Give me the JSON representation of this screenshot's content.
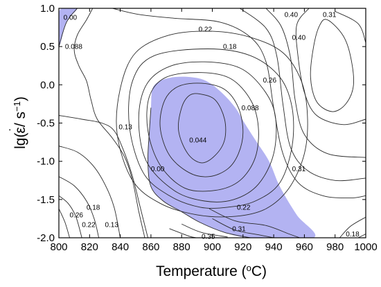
{
  "chart_data": {
    "type": "contour",
    "title": "",
    "xlabel": {
      "main": "Temperature (",
      "sup": "o",
      "tail": "C)"
    },
    "ylabel": {
      "prefix": "lg(",
      "dot": "˙",
      "eps": "ε",
      "mid": "/ s",
      "sup": "−1",
      "tail": ")"
    },
    "xlim": [
      800,
      1000
    ],
    "ylim": [
      -2.0,
      1.0
    ],
    "xticks": [
      800,
      820,
      840,
      860,
      880,
      900,
      920,
      940,
      960,
      980,
      1000
    ],
    "yticks": [
      {
        "value": 1.0,
        "label": "1.0"
      },
      {
        "value": 0.5,
        "label": "0.5"
      },
      {
        "value": 0.0,
        "label": "0.0"
      },
      {
        "value": -0.5,
        "label": "-0.5"
      },
      {
        "value": -1.0,
        "label": "-1.0"
      },
      {
        "value": -1.5,
        "label": "-1.5"
      },
      {
        "value": -2.0,
        "label": "-2.0"
      }
    ],
    "instability_regions": [
      {
        "color": "#b3b3f2",
        "points": [
          [
            800,
            0.5
          ],
          [
            800,
            0.94
          ],
          [
            805,
            1.0
          ],
          [
            812,
            1.0
          ],
          [
            805,
            0.82
          ],
          [
            800,
            0.5
          ]
        ]
      },
      {
        "color": "#b3b3f2",
        "points": [
          [
            860,
            -0.3
          ],
          [
            861,
            -0.05
          ],
          [
            866,
            0.05
          ],
          [
            875,
            0.1
          ],
          [
            886,
            0.1
          ],
          [
            896,
            0.05
          ],
          [
            906,
            -0.1
          ],
          [
            915,
            -0.3
          ],
          [
            921,
            -0.5
          ],
          [
            928,
            -0.72
          ],
          [
            937,
            -1.0
          ],
          [
            944,
            -1.33
          ],
          [
            955,
            -1.7
          ],
          [
            966,
            -2.0
          ],
          [
            925,
            -2.0
          ],
          [
            908,
            -1.93
          ],
          [
            892,
            -1.8
          ],
          [
            880,
            -1.66
          ],
          [
            868,
            -1.52
          ],
          [
            860,
            -1.33
          ],
          [
            858,
            -1.0
          ],
          [
            859,
            -0.6
          ],
          [
            860,
            -0.3
          ]
        ]
      }
    ],
    "contour_lines": [
      {
        "level": "0.044",
        "points": [
          [
            892,
            -0.12
          ],
          [
            902,
            -0.2
          ],
          [
            908,
            -0.45
          ],
          [
            908,
            -0.72
          ],
          [
            902,
            -0.92
          ],
          [
            893,
            -1.02
          ],
          [
            884,
            -0.9
          ],
          [
            878,
            -0.6
          ],
          [
            880,
            -0.3
          ],
          [
            885,
            -0.14
          ],
          [
            892,
            -0.12
          ]
        ]
      },
      {
        "level": "0.088",
        "points": [
          [
            893,
            0.02
          ],
          [
            908,
            -0.06
          ],
          [
            917,
            -0.3
          ],
          [
            920,
            -0.62
          ],
          [
            917,
            -0.9
          ],
          [
            910,
            -1.1
          ],
          [
            898,
            -1.2
          ],
          [
            885,
            -1.15
          ],
          [
            872,
            -0.92
          ],
          [
            866,
            -0.55
          ],
          [
            869,
            -0.2
          ],
          [
            878,
            -0.02
          ],
          [
            893,
            0.02
          ]
        ]
      },
      {
        "level": "0.13",
        "points": [
          [
            893,
            0.16
          ],
          [
            912,
            0.08
          ],
          [
            925,
            -0.2
          ],
          [
            930,
            -0.55
          ],
          [
            928,
            -0.95
          ],
          [
            918,
            -1.25
          ],
          [
            902,
            -1.38
          ],
          [
            882,
            -1.35
          ],
          [
            866,
            -1.05
          ],
          [
            858,
            -0.6
          ],
          [
            859,
            -0.15
          ],
          [
            870,
            0.1
          ],
          [
            893,
            0.16
          ]
        ]
      },
      {
        "level": "0.18",
        "points": [
          [
            895,
            0.3
          ],
          [
            918,
            0.22
          ],
          [
            933,
            -0.05
          ],
          [
            941,
            -0.4
          ],
          [
            940,
            -0.9
          ],
          [
            930,
            -1.3
          ],
          [
            914,
            -1.5
          ],
          [
            895,
            -1.52
          ],
          [
            875,
            -1.38
          ],
          [
            857,
            -1.0
          ],
          [
            852,
            -0.45
          ],
          [
            857,
            0.0
          ],
          [
            872,
            0.24
          ],
          [
            895,
            0.3
          ]
        ]
      },
      {
        "level": "0.22",
        "points": [
          [
            897,
            0.47
          ],
          [
            925,
            0.38
          ],
          [
            944,
            0.1
          ],
          [
            952,
            -0.3
          ],
          [
            952,
            -0.8
          ],
          [
            944,
            -1.28
          ],
          [
            928,
            -1.52
          ],
          [
            910,
            -1.6
          ],
          [
            892,
            -1.6
          ],
          [
            872,
            -1.45
          ],
          [
            855,
            -1.15
          ],
          [
            846,
            -0.55
          ],
          [
            848,
            0.05
          ],
          [
            862,
            0.38
          ],
          [
            897,
            0.47
          ]
        ]
      },
      {
        "level": "0.26",
        "points": [
          [
            925,
            0.62
          ],
          [
            946,
            0.42
          ],
          [
            958,
            0.05
          ],
          [
            962,
            -0.4
          ],
          [
            960,
            -0.9
          ],
          [
            950,
            -1.35
          ],
          [
            935,
            -1.62
          ],
          [
            915,
            -1.72
          ],
          [
            890,
            -1.7
          ],
          [
            866,
            -1.55
          ],
          [
            848,
            -1.25
          ],
          [
            838,
            -0.65
          ],
          [
            840,
            -0.05
          ],
          [
            850,
            0.42
          ],
          [
            872,
            0.65
          ],
          [
            900,
            0.7
          ],
          [
            925,
            0.62
          ]
        ]
      },
      {
        "level": "0.31",
        "points": [
          [
            975,
            0.85
          ],
          [
            985,
            0.65
          ],
          [
            990,
            0.38
          ],
          [
            992,
            0.0
          ],
          [
            987,
            -0.25
          ],
          [
            978,
            -0.35
          ],
          [
            968,
            -0.22
          ],
          [
            964,
            0.1
          ],
          [
            966,
            0.5
          ],
          [
            970,
            0.78
          ],
          [
            975,
            0.85
          ]
        ]
      },
      {
        "level": "0.35",
        "points": [
          [
            980,
            0.96
          ],
          [
            995,
            0.8
          ],
          [
            1000,
            0.55
          ]
        ]
      },
      {
        "level": "0.40",
        "points": [
          [
            963,
            1.0
          ],
          [
            955,
            0.78
          ],
          [
            956,
            0.35
          ],
          [
            960,
            -0.1
          ],
          [
            968,
            -0.4
          ],
          [
            985,
            -0.52
          ],
          [
            1000,
            -0.45
          ]
        ]
      },
      {
        "level": "0.40",
        "points": [
          [
            935,
            1.0
          ],
          [
            945,
            0.76
          ],
          [
            951,
            0.35
          ],
          [
            954,
            -0.2
          ],
          [
            960,
            -0.65
          ],
          [
            975,
            -0.9
          ],
          [
            1000,
            -0.95
          ]
        ]
      },
      {
        "level": "0.31",
        "points": [
          [
            918,
            1.0
          ],
          [
            935,
            0.74
          ],
          [
            942,
            0.38
          ],
          [
            946,
            -0.25
          ],
          [
            951,
            -0.82
          ],
          [
            962,
            -1.12
          ],
          [
            980,
            -1.25
          ],
          [
            1000,
            -1.22
          ]
        ]
      },
      {
        "level": "0.26",
        "points": [
          [
            835,
            1.0
          ],
          [
            852,
            0.92
          ],
          [
            875,
            0.87
          ],
          [
            905,
            0.82
          ],
          [
            925,
            0.62
          ],
          [
            935,
            0.3
          ],
          [
            940,
            -0.3
          ],
          [
            946,
            -0.9
          ],
          [
            956,
            -1.28
          ],
          [
            972,
            -1.45
          ],
          [
            990,
            -1.48
          ],
          [
            1000,
            -1.45
          ]
        ]
      },
      {
        "level": "0.22",
        "points": [
          [
            898,
            -1.62
          ],
          [
            915,
            -1.78
          ],
          [
            935,
            -1.84
          ],
          [
            950,
            -1.95
          ],
          [
            957,
            -2.0
          ]
        ]
      },
      {
        "level": "0.31",
        "points": [
          [
            900,
            -1.75
          ],
          [
            915,
            -1.9
          ],
          [
            930,
            -1.96
          ],
          [
            940,
            -2.0
          ]
        ]
      },
      {
        "level": "0.35",
        "points": [
          [
            880,
            -1.82
          ],
          [
            893,
            -1.93
          ],
          [
            910,
            -1.99
          ]
        ]
      },
      {
        "level": "0.40",
        "points": [
          [
            872,
            -1.88
          ],
          [
            885,
            -1.98
          ],
          [
            890,
            -2.0
          ]
        ]
      },
      {
        "level": "0.18",
        "points": [
          [
            1000,
            -1.73
          ],
          [
            990,
            -1.85
          ],
          [
            983,
            -2.0
          ]
        ]
      },
      {
        "level": "0.13",
        "points": [
          [
            1000,
            -1.95
          ],
          [
            995,
            -2.0
          ]
        ]
      },
      {
        "level": "0.13",
        "points": [
          [
            800,
            -0.4
          ],
          [
            815,
            -0.45
          ],
          [
            828,
            -0.5
          ],
          [
            836,
            -0.6
          ],
          [
            842,
            -0.85
          ],
          [
            848,
            -1.2
          ],
          [
            853,
            -1.6
          ],
          [
            858,
            -2.0
          ]
        ]
      },
      {
        "level": "0.18",
        "points": [
          [
            800,
            -0.8
          ],
          [
            812,
            -0.88
          ],
          [
            822,
            -1.05
          ],
          [
            830,
            -1.3
          ],
          [
            836,
            -1.6
          ],
          [
            840,
            -2.0
          ]
        ]
      },
      {
        "level": "0.22",
        "points": [
          [
            800,
            -1.2
          ],
          [
            810,
            -1.32
          ],
          [
            818,
            -1.52
          ],
          [
            823,
            -1.75
          ],
          [
            826,
            -2.0
          ]
        ]
      },
      {
        "level": "0.26",
        "points": [
          [
            800,
            -1.45
          ],
          [
            806,
            -1.55
          ],
          [
            811,
            -1.72
          ],
          [
            815,
            -2.0
          ]
        ]
      },
      {
        "level": "0.31",
        "points": [
          [
            800,
            -1.62
          ],
          [
            804,
            -1.8
          ],
          [
            807,
            -2.0
          ]
        ]
      },
      {
        "level": "0.088",
        "points": [
          [
            822,
            1.0
          ],
          [
            818,
            0.85
          ],
          [
            812,
            0.65
          ],
          [
            810,
            0.45
          ],
          [
            813,
            0.25
          ],
          [
            818,
            0.05
          ],
          [
            821,
            -0.2
          ],
          [
            825,
            -0.45
          ],
          [
            835,
            -0.7
          ],
          [
            843,
            -0.95
          ],
          [
            848,
            -1.25
          ],
          [
            852,
            -1.65
          ],
          [
            856,
            -2.0
          ]
        ]
      },
      {
        "level": "0.00",
        "points": [
          [
            800,
            0.5
          ],
          [
            805,
            0.82
          ],
          [
            812,
            1.0
          ]
        ]
      },
      {
        "level": "0.00",
        "points": [
          [
            860,
            -0.3
          ],
          [
            859,
            -0.6
          ],
          [
            858,
            -1.0
          ],
          [
            860,
            -1.33
          ],
          [
            868,
            -1.52
          ],
          [
            880,
            -1.66
          ],
          [
            892,
            -1.8
          ],
          [
            908,
            -1.93
          ],
          [
            925,
            -2.0
          ]
        ]
      }
    ],
    "contour_labels": [
      {
        "text": "0.00",
        "x": 803,
        "y": 0.88
      },
      {
        "text": "0.088",
        "x": 804,
        "y": 0.5
      },
      {
        "text": "0.22",
        "x": 891,
        "y": 0.73
      },
      {
        "text": "0.18",
        "x": 907,
        "y": 0.5
      },
      {
        "text": "0.40",
        "x": 947,
        "y": 0.92
      },
      {
        "text": "0.40",
        "x": 952,
        "y": 0.62
      },
      {
        "text": "0.31",
        "x": 972,
        "y": 0.92
      },
      {
        "text": "0.26",
        "x": 933,
        "y": 0.06
      },
      {
        "text": "0.088",
        "x": 919,
        "y": -0.3
      },
      {
        "text": "0.13",
        "x": 839,
        "y": -0.55
      },
      {
        "text": "0.044",
        "x": 885,
        "y": -0.72
      },
      {
        "text": "0.00",
        "x": 860,
        "y": -1.1
      },
      {
        "text": "0.31",
        "x": 952,
        "y": -1.1
      },
      {
        "text": "0.22",
        "x": 916,
        "y": -1.6
      },
      {
        "text": "0.31",
        "x": 913,
        "y": -1.88
      },
      {
        "text": "0.35",
        "x": 893,
        "y": -1.98
      },
      {
        "text": "0.18",
        "x": 987,
        "y": -1.95
      },
      {
        "text": "0.18",
        "x": 818,
        "y": -1.6
      },
      {
        "text": "0.26",
        "x": 807,
        "y": -1.7
      },
      {
        "text": "0.22",
        "x": 815,
        "y": -1.83
      },
      {
        "text": "0.13",
        "x": 830,
        "y": -1.83
      }
    ]
  }
}
